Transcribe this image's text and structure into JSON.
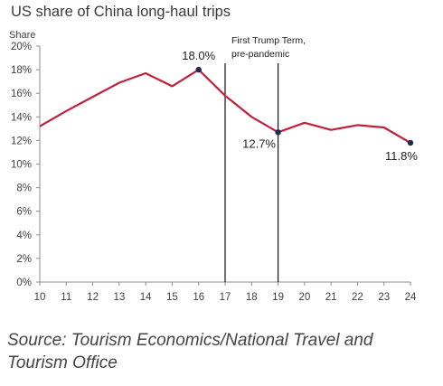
{
  "chart_data": {
    "type": "line",
    "title": "US share of China long-haul trips",
    "ylabel": "Share",
    "xlabel": "",
    "x": [
      10,
      11,
      12,
      13,
      14,
      15,
      16,
      17,
      18,
      19,
      20,
      21,
      22,
      23,
      24
    ],
    "series": [
      {
        "name": "",
        "values": [
          13.2,
          14.5,
          15.7,
          16.9,
          17.7,
          16.6,
          18.0,
          15.8,
          14.0,
          12.7,
          13.5,
          12.9,
          13.3,
          13.1,
          11.8
        ]
      }
    ],
    "ylim": [
      0,
      20
    ],
    "yticks": [
      0,
      2,
      4,
      6,
      8,
      10,
      12,
      14,
      16,
      18,
      20
    ],
    "ytick_labels": [
      "0%",
      "2%",
      "4%",
      "6%",
      "8%",
      "10%",
      "12%",
      "14%",
      "16%",
      "18%",
      "20%"
    ],
    "xlim": [
      10,
      24
    ],
    "grid": false,
    "line_color": "#c0203a",
    "marker_color": "#1b2a4a",
    "highlight_points": [
      {
        "x": 16,
        "y": 18.0,
        "label": "18.0%"
      },
      {
        "x": 19,
        "y": 12.7,
        "label": "12.7%"
      },
      {
        "x": 24,
        "y": 11.8,
        "label": "11.8%"
      }
    ],
    "vertical_lines": [
      {
        "x": 17
      },
      {
        "x": 19
      }
    ],
    "annotation": {
      "lines": [
        "First Trump Term,",
        "pre-pandemic"
      ]
    }
  },
  "source": "Source: Tourism Economics/National Travel and Tourism Office"
}
